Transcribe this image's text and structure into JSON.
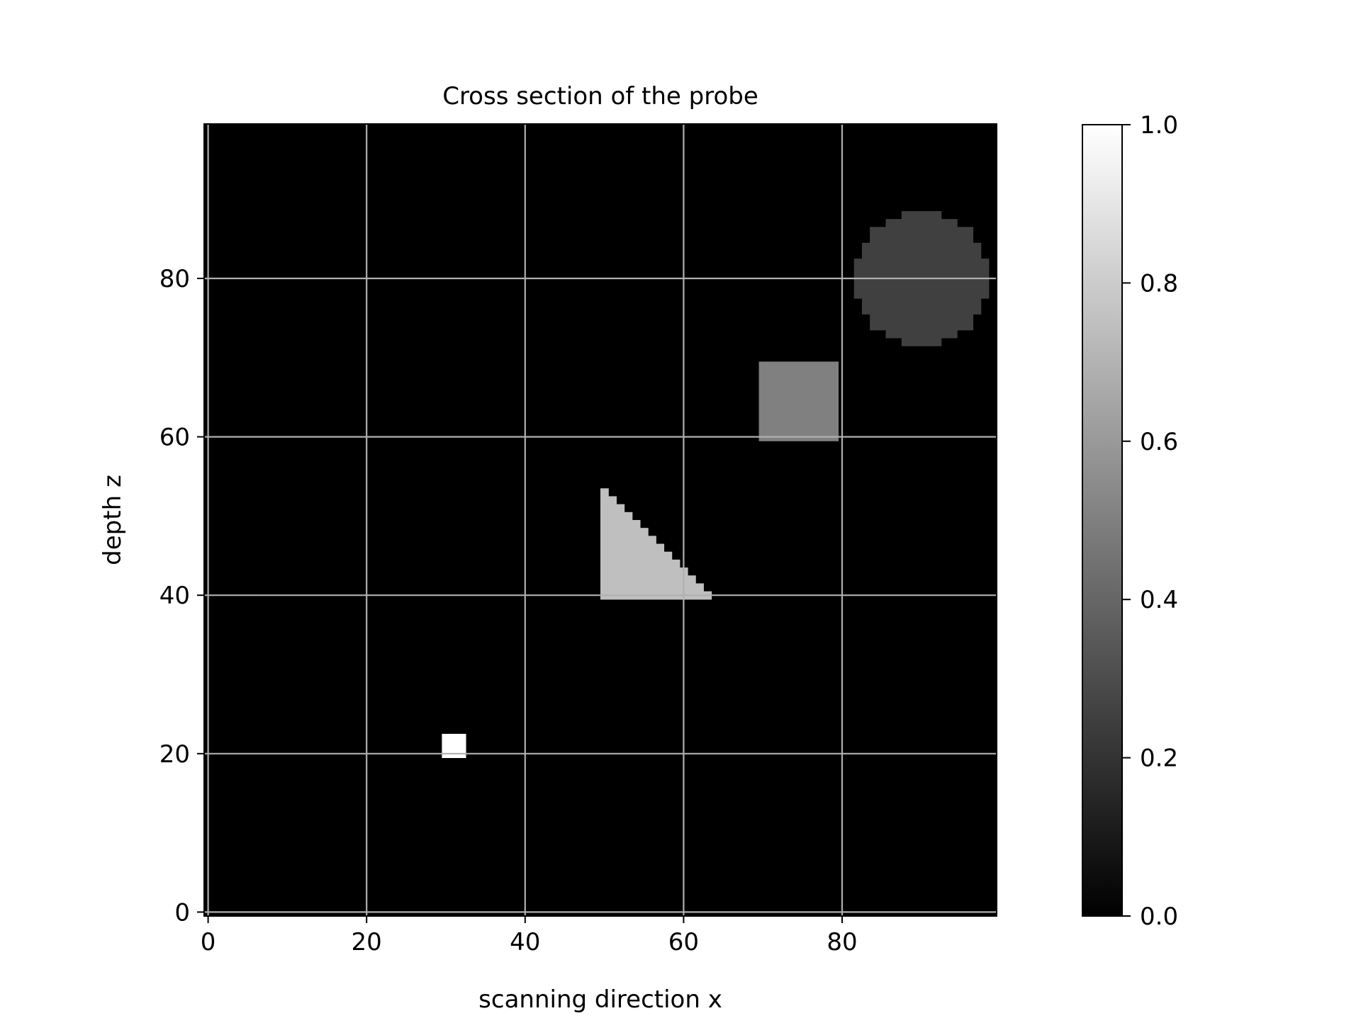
{
  "chart_data": {
    "type": "heatmap",
    "title": "Cross section of the probe",
    "xlabel": "scanning direction x",
    "ylabel": "depth z",
    "xlim": [
      -0.5,
      99.5
    ],
    "ylim": [
      -0.5,
      99.5
    ],
    "xticks": [
      0,
      20,
      40,
      60,
      80
    ],
    "yticks": [
      0,
      20,
      40,
      60,
      80
    ],
    "grid": true,
    "colormap": "gray",
    "colorbar": {
      "min": 0.0,
      "max": 1.0,
      "ticks": [
        "0.0",
        "0.2",
        "0.4",
        "0.6",
        "0.8",
        "1.0"
      ]
    },
    "background_value": 0.0,
    "objects": [
      {
        "shape": "square",
        "value": 1.0,
        "x_range": [
          30,
          32
        ],
        "z_range": [
          20,
          22
        ]
      },
      {
        "shape": "right-triangle",
        "value": 0.75,
        "x_range": [
          50,
          63
        ],
        "z_range": [
          40,
          53
        ]
      },
      {
        "shape": "square",
        "value": 0.5,
        "x_range": [
          70,
          79
        ],
        "z_range": [
          60,
          69
        ]
      },
      {
        "shape": "circle",
        "value": 0.25,
        "center": [
          90,
          80
        ],
        "radius": 8.5
      }
    ]
  }
}
